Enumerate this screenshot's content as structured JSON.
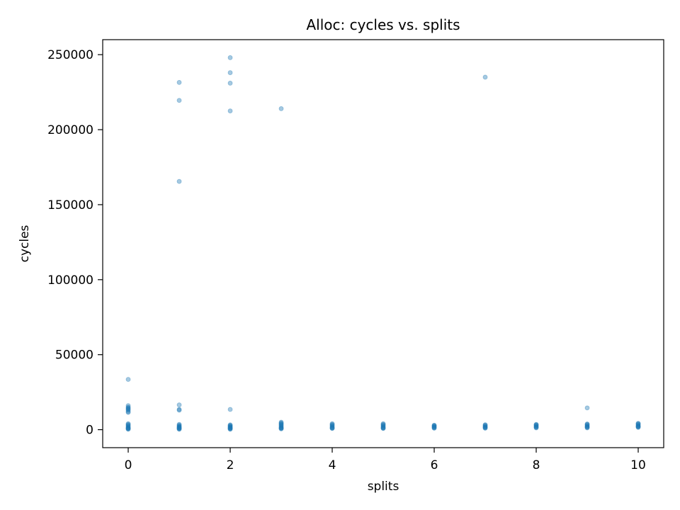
{
  "chart_data": {
    "type": "scatter",
    "title": "Alloc: cycles vs. splits",
    "xlabel": "splits",
    "ylabel": "cycles",
    "xlim": [
      -0.5,
      10.5
    ],
    "ylim": [
      -12000,
      260000
    ],
    "xticks": [
      0,
      2,
      4,
      6,
      8,
      10
    ],
    "xtick_labels": [
      "0",
      "2",
      "4",
      "6",
      "8",
      "10"
    ],
    "yticks": [
      0,
      50000,
      100000,
      150000,
      200000,
      250000
    ],
    "ytick_labels": [
      "0",
      "50000",
      "100000",
      "150000",
      "200000",
      "250000"
    ],
    "grid": false,
    "marker_color": "#1f77b4",
    "marker_alpha": 0.4,
    "series": [
      {
        "name": "cycles",
        "x": [
          0,
          0,
          0,
          0,
          0,
          0,
          0,
          0,
          0,
          0,
          0,
          0,
          0,
          0,
          0,
          0,
          0,
          0,
          0,
          0,
          1,
          1,
          1,
          1,
          1,
          1,
          1,
          1,
          1,
          1,
          1,
          1,
          1,
          1,
          1,
          1,
          1,
          2,
          2,
          2,
          2,
          2,
          2,
          2,
          2,
          2,
          2,
          2,
          2,
          2,
          2,
          2,
          2,
          3,
          3,
          3,
          3,
          3,
          3,
          3,
          3,
          3,
          3,
          3,
          3,
          3,
          4,
          4,
          4,
          4,
          4,
          4,
          4,
          4,
          4,
          5,
          5,
          5,
          5,
          5,
          5,
          5,
          5,
          5,
          6,
          6,
          6,
          6,
          6,
          6,
          6,
          6,
          7,
          7,
          7,
          7,
          7,
          7,
          7,
          7,
          7,
          8,
          8,
          8,
          8,
          8,
          8,
          8,
          8,
          9,
          9,
          9,
          9,
          9,
          9,
          9,
          9,
          9,
          10,
          10,
          10,
          10,
          10,
          10,
          10,
          10,
          10
        ],
        "y": [
          33500,
          16000,
          15000,
          14500,
          14000,
          13500,
          13000,
          12000,
          11500,
          4000,
          3500,
          3000,
          2500,
          2000,
          1500,
          1200,
          1000,
          800,
          500,
          300,
          231500,
          219500,
          165500,
          16500,
          13500,
          13000,
          3500,
          3000,
          2500,
          2000,
          1800,
          1500,
          1200,
          1000,
          800,
          500,
          300,
          248000,
          238000,
          231000,
          212500,
          13500,
          3200,
          2800,
          2500,
          2000,
          1800,
          1500,
          1200,
          1000,
          800,
          500,
          300,
          214000,
          5000,
          4500,
          4000,
          3500,
          3000,
          2500,
          2000,
          1500,
          1200,
          1000,
          800,
          500,
          4000,
          3500,
          3000,
          2500,
          2000,
          1500,
          1200,
          1000,
          800,
          4000,
          3500,
          3000,
          2500,
          2000,
          1500,
          1200,
          1000,
          800,
          3000,
          2700,
          2500,
          2000,
          1800,
          1500,
          1200,
          1000,
          235000,
          3300,
          3000,
          2500,
          2000,
          1800,
          1500,
          1200,
          1000,
          3500,
          3200,
          3000,
          2500,
          2000,
          1800,
          1500,
          1200,
          14500,
          3800,
          3500,
          3000,
          2500,
          2000,
          1800,
          1500,
          1200,
          4200,
          4000,
          3500,
          3000,
          2500,
          2200,
          2000,
          1800,
          1500
        ]
      }
    ]
  }
}
